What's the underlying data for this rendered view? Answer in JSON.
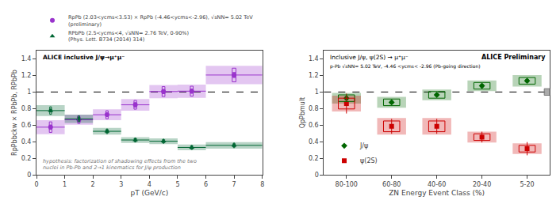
{
  "chart_data": [
    {
      "type": "scatter",
      "title": "ALICE inclusive J/ψ→μ⁺μ⁻",
      "xlabel": "pT (GeV/c)",
      "ylabel": "RpPbbckw × RPbPb, RPbPb",
      "xlim": [
        0,
        8
      ],
      "xticks": [
        0,
        1,
        2,
        3,
        4,
        5,
        6,
        7,
        8
      ],
      "ylim": [
        0,
        1.5
      ],
      "yticks": [
        0,
        0.2,
        0.4,
        0.6,
        0.8,
        1,
        1.2,
        1.4
      ],
      "grid": false,
      "legend": "above",
      "reference_line": 1.0,
      "annotations": [
        "hypothesis: factorization of shadowing effects from the two\nnuclei in Pb-Pb and 2→1 kinematics for J/ψ production"
      ],
      "series": [
        {
          "name": "RpPb (2.03<ycms<3.53) × RpPb (-4.46<ycms<-2.96), √sNN= 5.02 TeV\n(preliminary)",
          "color": "#9933CC",
          "marker": "circle",
          "x": [
            0.5,
            1.5,
            2.5,
            3.5,
            4.5,
            5.5,
            7.0
          ],
          "values": [
            0.575,
            0.665,
            0.725,
            0.845,
            1.005,
            1.01,
            1.205
          ],
          "xerr": [
            0.5,
            0.5,
            0.5,
            0.5,
            0.5,
            0.5,
            1.0
          ],
          "yerr": [
            0.025,
            0.02,
            0.02,
            0.025,
            0.025,
            0.025,
            0.03
          ],
          "syst": [
            0.085,
            0.06,
            0.065,
            0.07,
            0.08,
            0.08,
            0.11
          ],
          "syst_inner_xhalf": [
            0.045,
            0.04,
            0.04,
            0.045,
            0.05,
            0.05,
            0.065
          ],
          "syst_inner_yhalf": [
            0.06375,
            0.045,
            0.04875,
            0.0525,
            0.06,
            0.06,
            0.0825
          ]
        },
        {
          "name": "RPbPb (2.5<ycms<4, √sNN= 2.76 TeV, 0-90%)\n(Phys. Lett. B734 (2014) 314)",
          "color": "#006633",
          "marker": "triangle",
          "x": [
            0.5,
            1.5,
            2.5,
            3.5,
            4.5,
            5.5,
            7.0
          ],
          "values": [
            0.775,
            0.675,
            0.525,
            0.42,
            0.405,
            0.33,
            0.355
          ],
          "xerr": [
            0.5,
            0.5,
            0.5,
            0.5,
            0.5,
            0.5,
            1.0
          ],
          "yerr": [
            0.015,
            0.015,
            0.015,
            0.015,
            0.015,
            0.015,
            0.015
          ],
          "syst": [
            0.065,
            0.05,
            0.04,
            0.035,
            0.035,
            0.035,
            0.04
          ],
          "syst_inner_xhalf": [
            0.03,
            0.03,
            0.025,
            0.022,
            0.022,
            0.022,
            0.025
          ],
          "syst_inner_yhalf": [
            0.0455,
            0.035,
            0.028,
            0.0245,
            0.0245,
            0.0245,
            0.028
          ]
        }
      ]
    },
    {
      "type": "scatter",
      "title": "Inclusive J/ψ, ψ(2S) → μ⁺μ⁻",
      "xlabel": "ZN Energy Event Class (%)",
      "ylabel": "QpPbmult",
      "categories": [
        "80-100",
        "60-80",
        "40-60",
        "20-40",
        "5-20"
      ],
      "ylim": [
        0,
        1.5
      ],
      "yticks": [
        0,
        0.2,
        0.4,
        0.6,
        0.8,
        1,
        1.2,
        1.4
      ],
      "grid": false,
      "legend": "lower left",
      "reference_line": 1.0,
      "norm_uncertainty": 0.04,
      "annotations": [
        "ALICE Preliminary",
        "p-Pb √sNN= 5.02 TeV, -4.46 <ycms< -2.96 (Pb-going direction)"
      ],
      "series": [
        {
          "name": "J/ψ",
          "color": "#006600",
          "marker": "diamond",
          "values": [
            0.925,
            0.875,
            0.965,
            1.075,
            1.135
          ],
          "yerr": [
            0.018,
            0.018,
            0.015,
            0.015,
            0.015
          ],
          "syst": [
            0.04,
            0.04,
            0.04,
            0.04,
            0.04
          ],
          "syst_outer": [
            0.065,
            0.065,
            0.065,
            0.065,
            0.07
          ]
        },
        {
          "name": "ψ(2S)",
          "color": "#CC0000",
          "marker": "square",
          "values": [
            0.86,
            0.585,
            0.585,
            0.455,
            0.315
          ],
          "yerr_minus": [
            0.12,
            0.09,
            0.09,
            0.065,
            0.08
          ],
          "yerr_plus": [
            0.12,
            0.09,
            0.09,
            0.065,
            0.08
          ],
          "syst": [
            0.065,
            0.065,
            0.065,
            0.04,
            0.04
          ],
          "syst_outer": [
            0.095,
            0.1,
            0.1,
            0.065,
            0.065
          ]
        }
      ]
    }
  ]
}
